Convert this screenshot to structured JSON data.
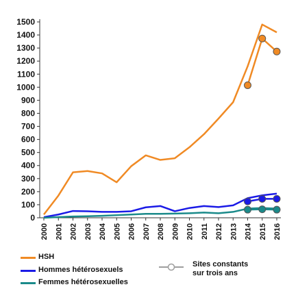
{
  "chart_data": {
    "type": "line",
    "categories": [
      "2000",
      "2001",
      "2002",
      "2003",
      "2004",
      "2005",
      "2006",
      "2007",
      "2008",
      "2009",
      "2010",
      "2011",
      "2012",
      "2013",
      "2014",
      "2015",
      "2016"
    ],
    "ylim": [
      0,
      1500
    ],
    "yticks": [
      0,
      100,
      200,
      300,
      400,
      500,
      600,
      700,
      800,
      900,
      1000,
      1100,
      1200,
      1300,
      1400,
      1500
    ],
    "grid": false,
    "legend_position": "bottom",
    "series": [
      {
        "name": "HSH",
        "color": "#F08A24",
        "values": [
          25,
          170,
          348,
          358,
          340,
          272,
          395,
          478,
          443,
          456,
          540,
          640,
          760,
          885,
          1160,
          1480,
          1420
        ]
      },
      {
        "name": "Hommes hétérosexuels",
        "color": "#1A1AE6",
        "values": [
          5,
          25,
          52,
          50,
          45,
          45,
          50,
          80,
          90,
          50,
          75,
          90,
          82,
          95,
          150,
          172,
          185
        ]
      },
      {
        "name": "Femmes hétérosexuelles",
        "color": "#1A8A8A",
        "values": [
          0,
          5,
          10,
          12,
          15,
          20,
          25,
          30,
          30,
          32,
          35,
          40,
          35,
          45,
          70,
          75,
          70
        ]
      }
    ],
    "constant_sites": {
      "label": "Sites constants sur trois ans",
      "categories": [
        "2014",
        "2015",
        "2016"
      ],
      "series": [
        {
          "color": "#F08A24",
          "values": [
            1015,
            1373,
            1273
          ]
        },
        {
          "color": "#1A1AE6",
          "values": [
            125,
            145,
            145
          ]
        },
        {
          "color": "#1A8A8A",
          "values": [
            62,
            65,
            62
          ]
        }
      ]
    }
  },
  "legend": {
    "hsh": "HSH",
    "hommes": "Hommes hétérosexuels",
    "femmes": "Femmes hétérosexuelles",
    "sites_line1": "Sites constants",
    "sites_line2": "sur trois ans"
  },
  "colors": {
    "hsh": "#F08A24",
    "hommes": "#1A1AE6",
    "femmes": "#1A8A8A",
    "sites": "#9E9E9E",
    "axis": "#333333"
  }
}
